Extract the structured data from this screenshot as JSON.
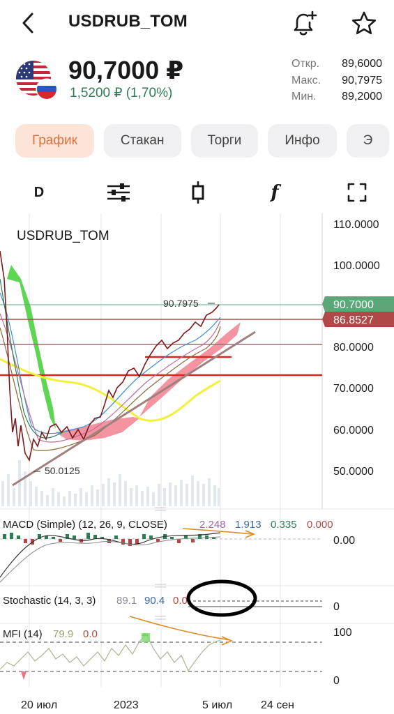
{
  "header": {
    "title": "USDRUB_TOM",
    "icons": {
      "back": "chevron-left-icon",
      "alert": "bell-plus-icon",
      "favorite": "star-icon"
    }
  },
  "quote": {
    "price": "90,7000 ₽",
    "change": "1,5200 ₽ (1,70%)",
    "flag": "usd-rub-flag-icon",
    "stats": [
      {
        "label": "Откр.",
        "value": "89,6000"
      },
      {
        "label": "Макс.",
        "value": "90,7975"
      },
      {
        "label": "Мин.",
        "value": "89,2000"
      }
    ]
  },
  "tabs": [
    {
      "label": "График",
      "active": true
    },
    {
      "label": "Стакан",
      "active": false
    },
    {
      "label": "Торги",
      "active": false
    },
    {
      "label": "Инфо",
      "active": false
    },
    {
      "label": "Э",
      "active": false
    }
  ],
  "toolbar": {
    "interval": "D",
    "settings_icon": "sliders-icon",
    "candle_icon": "candlestick-icon",
    "indicator": "f",
    "fullscreen_icon": "fullscreen-icon"
  },
  "chart": {
    "symbol": "USDRUB_TOM",
    "price_axis": [
      "110.0000",
      "100.0000",
      "80.0000",
      "70.0000",
      "60.0000",
      "50.0000"
    ],
    "high_label": "90.7975",
    "low_label": "50.0125",
    "last_price": "90.7000",
    "level_price": "86.8527",
    "colors": {
      "last": "#5aa878",
      "level": "#b04848",
      "up": "#2e7d54",
      "ichimoku": "#4cd040",
      "sma": "#f2f03a",
      "red_line": "#d8261c"
    },
    "date_axis": [
      "20 июл",
      "2023",
      "5 июл",
      "24 сен"
    ],
    "macd": {
      "label": "MACD (Simple) (12, 26, 9, CLOSE)",
      "values": [
        "2.248",
        "1.913",
        "0.335",
        "0.000"
      ],
      "axis": "0.00"
    },
    "stochastic": {
      "label": "Stochastic (14, 3, 3)",
      "values": [
        "89.1",
        "90.4",
        "0.0"
      ],
      "axis": "0"
    },
    "mfi": {
      "label": "MFI (14)",
      "values": [
        "79.9",
        "0.0"
      ],
      "axis_top": "100",
      "axis_bottom": "0"
    }
  }
}
